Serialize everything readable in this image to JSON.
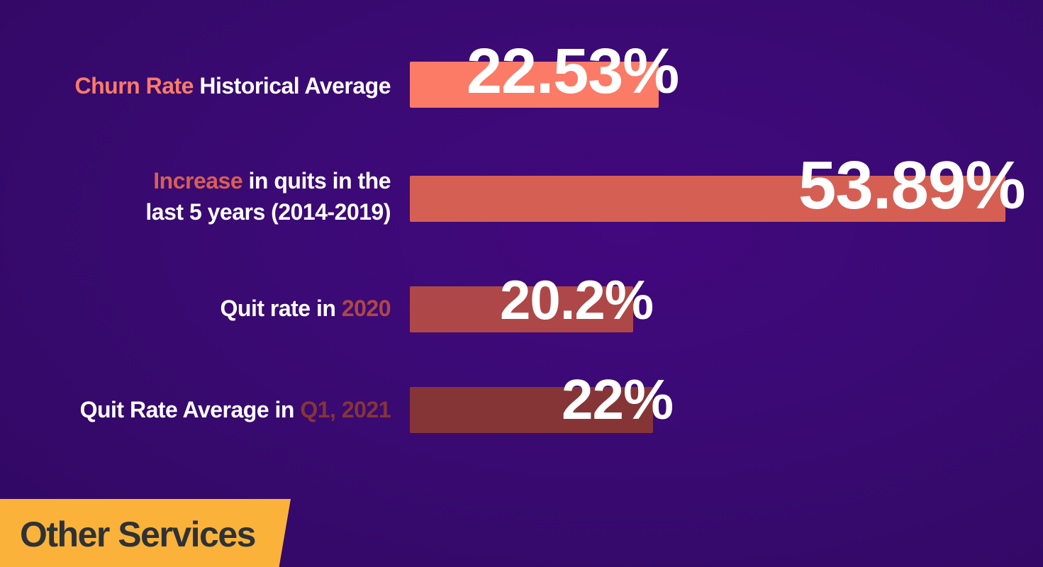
{
  "chart_data": {
    "type": "bar",
    "orientation": "horizontal",
    "categories": [
      "Churn Rate Historical Average",
      "Increase in quits in the last 5 years (2014-2019)",
      "Quit rate in 2020",
      "Quit Rate Average in Q1, 2021"
    ],
    "values": [
      22.53,
      53.89,
      20.2,
      22
    ],
    "value_labels": [
      "22.53%",
      "53.89%",
      "20.2%",
      "22%"
    ],
    "bar_colors": [
      "#fb7b67",
      "#d65f54",
      "#ae4747",
      "#863537"
    ],
    "xlim": [
      0,
      53.89
    ],
    "grid": false,
    "legend": "none"
  },
  "rows": [
    {
      "highlight": "Churn Rate",
      "rest": " Historical Average",
      "highlight_first": true,
      "highlight_color": "#fb7b67"
    },
    {
      "highlight": "Increase",
      "rest_line1": " in quits in the",
      "line2": "last 5 years (2014-2019)",
      "highlight_color": "#d65f54"
    },
    {
      "prefix": "Quit rate in ",
      "highlight": "2020",
      "highlight_color": "#ae4747"
    },
    {
      "prefix": "Quit Rate Average in ",
      "highlight": "Q1, 2021",
      "highlight_color": "#863537"
    }
  ],
  "banner": {
    "label": "Other Services",
    "color": "#fbb23a"
  }
}
